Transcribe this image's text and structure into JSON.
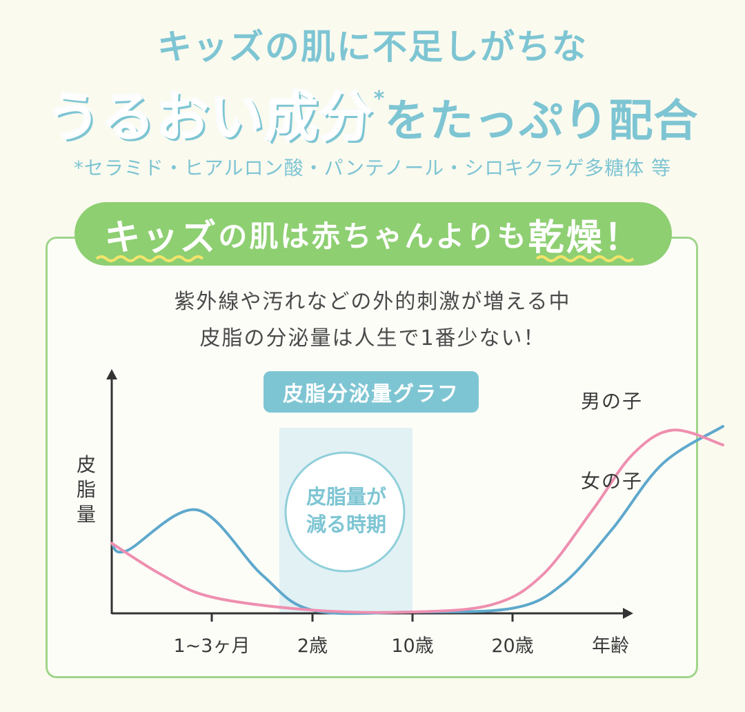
{
  "header": {
    "line1": "キッズの肌に不足しがちな",
    "line2_emphasis": "うるおい成分",
    "line2_star": "*",
    "line2_rest": "をたっぷり配合",
    "footnote": "*セラミド・ヒアルロン酸・パンテノール・シロキクラゲ多糖体 等"
  },
  "banner": {
    "part1": "キッズ",
    "part2": "の肌は赤ちゃんよりも",
    "part3": "乾燥！"
  },
  "description": {
    "line1": "紫外線や汚れなどの外的刺激が増える中",
    "line2": "皮脂の分泌量は人生で1番少ない！"
  },
  "chart_data": {
    "type": "line",
    "title": "皮脂分泌量グラフ",
    "ylabel": "皮脂量",
    "xlabel": "年齢",
    "x_ticks": [
      "1~3ヶ月",
      "2歳",
      "10歳",
      "20歳"
    ],
    "highlight": {
      "from": "2歳",
      "to": "10歳",
      "label_line1": "皮脂量が",
      "label_line2": "減る時期"
    },
    "series": [
      {
        "name": "男の子",
        "color": "#5ea8cc",
        "points": [
          [
            0,
            0.37
          ],
          [
            0.15,
            0.33
          ],
          [
            0.85,
            0.55
          ],
          [
            1.5,
            0.2
          ],
          [
            2.0,
            0.01
          ],
          [
            3.0,
            0.0
          ],
          [
            4.0,
            0.02
          ],
          [
            4.5,
            0.15
          ],
          [
            5.0,
            0.45
          ],
          [
            5.5,
            0.8
          ],
          [
            6.1,
            1.0
          ]
        ]
      },
      {
        "name": "女の子",
        "color": "#ee8fb0",
        "points": [
          [
            0,
            0.37
          ],
          [
            0.5,
            0.2
          ],
          [
            1.0,
            0.08
          ],
          [
            2.0,
            0.01
          ],
          [
            3.0,
            0.0
          ],
          [
            3.8,
            0.04
          ],
          [
            4.3,
            0.2
          ],
          [
            4.8,
            0.55
          ],
          [
            5.2,
            0.85
          ],
          [
            5.6,
            0.98
          ],
          [
            6.1,
            0.9
          ]
        ]
      }
    ],
    "grid": false,
    "legend": "inline-right"
  }
}
